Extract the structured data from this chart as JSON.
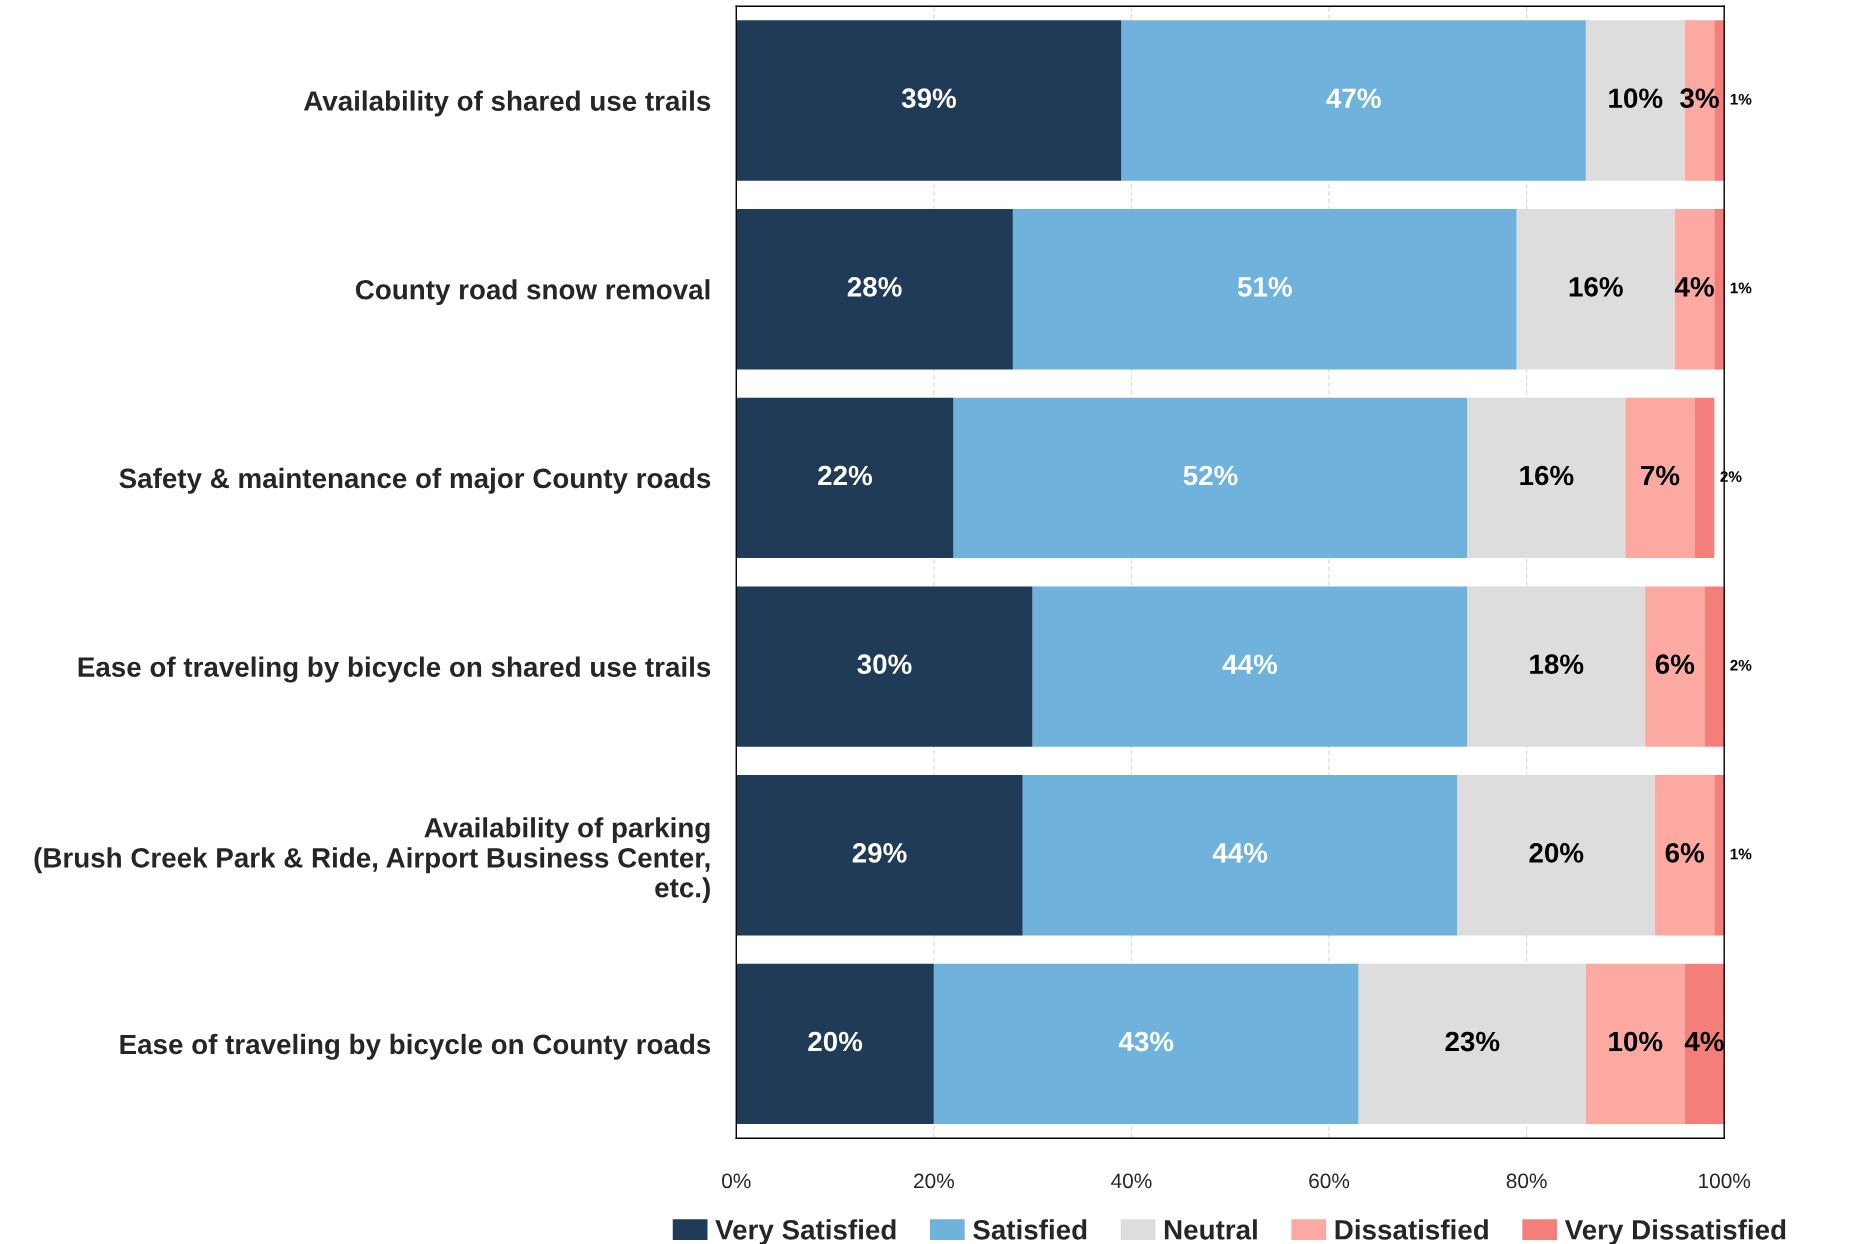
{
  "chart_data": {
    "type": "bar",
    "orientation": "horizontal",
    "stacked": true,
    "categories": [
      "Availability of shared use trails",
      "County road snow removal",
      "Safety & maintenance of major County roads",
      "Ease of traveling by bicycle on shared use trails",
      "Availability of parking\n(Brush Creek Park & Ride, Airport Business Center,\netc.)",
      "Ease of traveling by bicycle on County roads"
    ],
    "series": [
      {
        "name": "Very Satisfied",
        "color": "#1f3b57",
        "values": [
          39,
          28,
          22,
          30,
          29,
          20
        ],
        "value_labels": [
          "39%",
          "28%",
          "22%",
          "30%",
          "29%",
          "20%"
        ]
      },
      {
        "name": "Satisfied",
        "color": "#6fb2dc",
        "values": [
          47,
          51,
          52,
          44,
          44,
          43
        ],
        "value_labels": [
          "47%",
          "51%",
          "52%",
          "44%",
          "44%",
          "43%"
        ]
      },
      {
        "name": "Neutral",
        "color": "#dddddd",
        "values": [
          10,
          16,
          16,
          18,
          20,
          23
        ],
        "value_labels": [
          "10%",
          "16%",
          "16%",
          "18%",
          "20%",
          "23%"
        ]
      },
      {
        "name": "Dissatisfied",
        "color": "#fba9a1",
        "values": [
          3,
          4,
          7,
          6,
          6,
          10
        ],
        "value_labels": [
          "3%",
          "4%",
          "7%",
          "6%",
          "6%",
          "10%"
        ]
      },
      {
        "name": "Very Dissatisfied",
        "color": "#f47f7a",
        "values": [
          1,
          1,
          2,
          2,
          1,
          4
        ],
        "value_labels": [
          "1%",
          "1%",
          "2%",
          "2%",
          "1%",
          "4%"
        ]
      }
    ],
    "xlim": [
      0,
      100
    ],
    "xticks": [
      {
        "value": 0,
        "label": "0%"
      },
      {
        "value": 20,
        "label": "20%"
      },
      {
        "value": 40,
        "label": "40%"
      },
      {
        "value": 60,
        "label": "60%"
      },
      {
        "value": 80,
        "label": "80%"
      },
      {
        "value": 100,
        "label": "100%"
      }
    ],
    "grid": "x",
    "legend": "bottom"
  }
}
